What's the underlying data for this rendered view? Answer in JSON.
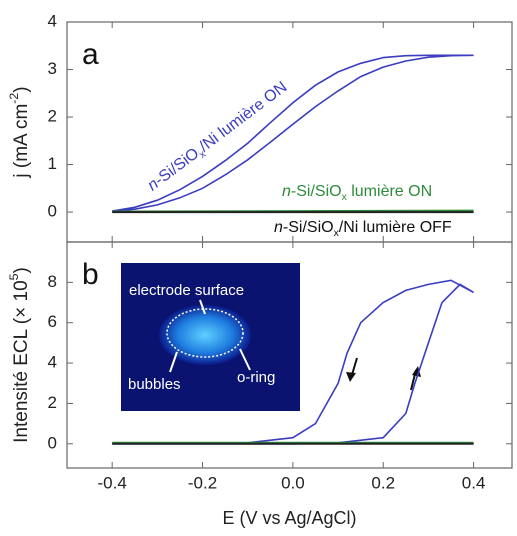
{
  "chart_data": [
    {
      "type": "line",
      "panel_label": "a",
      "ylabel": [
        "j (mA cm",
        "-2",
        ")"
      ],
      "ylabel_styles": [
        "normal",
        "sup",
        "normal"
      ],
      "xlim": [
        -0.5,
        0.485
      ],
      "xticks": [
        -0.4,
        -0.2,
        {
          "value": 0,
          "label": "0.0"
        },
        0.2,
        0.4
      ],
      "ylim": [
        -0.63,
        4
      ],
      "yticks": [
        0,
        1,
        2,
        3,
        4
      ],
      "series": [
        {
          "color": "#3a3dc0",
          "x": [
            -0.4,
            -0.35,
            -0.3,
            -0.25,
            -0.2,
            -0.15,
            -0.1,
            -0.05,
            0.0,
            0.05,
            0.1,
            0.15,
            0.2,
            0.25,
            0.3,
            0.35,
            0.4,
            0.35,
            0.3,
            0.25,
            0.2,
            0.15,
            0.1,
            0.05,
            0.0,
            -0.05,
            -0.1,
            -0.15,
            -0.2,
            -0.25,
            -0.3,
            -0.35,
            -0.4
          ],
          "values": [
            0.02,
            0.06,
            0.15,
            0.3,
            0.5,
            0.78,
            1.1,
            1.47,
            1.85,
            2.22,
            2.55,
            2.85,
            3.05,
            3.18,
            3.26,
            3.29,
            3.3,
            3.3,
            3.3,
            3.29,
            3.25,
            3.13,
            2.95,
            2.67,
            2.3,
            1.88,
            1.45,
            1.08,
            0.75,
            0.47,
            0.25,
            0.1,
            0.02
          ]
        },
        {
          "color": "#2e8b3a",
          "x": [
            -0.4,
            0.0,
            0.4
          ],
          "values": [
            0.01,
            0.02,
            0.03
          ]
        },
        {
          "color": "#222222",
          "x": [
            -0.4,
            0.0,
            0.4
          ],
          "values": [
            0.0,
            0.0,
            0.0
          ]
        }
      ],
      "annotations": [
        {
          "text": [
            "n",
            "-Si/SiO",
            "x",
            "/Ni lumière ON"
          ],
          "styles": [
            "italic",
            "normal",
            "sub",
            "normal"
          ],
          "color": "#3a3dc0"
        },
        {
          "text": [
            "n",
            "-Si/SiO",
            "x",
            " lumière ON"
          ],
          "styles": [
            "italic",
            "normal",
            "sub",
            "normal"
          ],
          "color": "#2e8b3a"
        },
        {
          "text": [
            "n",
            "-Si/SiO",
            "x",
            "/Ni lumière OFF"
          ],
          "styles": [
            "italic",
            "normal",
            "sub",
            "normal"
          ],
          "color": "#111111"
        }
      ]
    },
    {
      "type": "line",
      "panel_label": "b",
      "ylabel": [
        "Intensité ECL (× 10",
        "5",
        ")"
      ],
      "ylabel_styles": [
        "normal",
        "sup",
        "normal"
      ],
      "xlabel": "E (V vs Ag/AgCl)",
      "xlim": [
        -0.5,
        0.485
      ],
      "xticks": [
        -0.4,
        -0.2,
        {
          "value": 0,
          "label": "0.0"
        },
        0.2,
        0.4
      ],
      "ylim": [
        -1.2,
        10
      ],
      "yticks": [
        0,
        2,
        4,
        6,
        8
      ],
      "series": [
        {
          "color": "#3a3dc0",
          "x": [
            -0.4,
            -0.2,
            0.0,
            0.1,
            0.2,
            0.25,
            0.27,
            0.3,
            0.33,
            0.37,
            0.4,
            0.35,
            0.3,
            0.25,
            0.2,
            0.15,
            0.12,
            0.1,
            0.05,
            0.0,
            -0.1,
            -0.4
          ],
          "values": [
            0.0,
            0.0,
            0.0,
            0.05,
            0.3,
            1.5,
            3.0,
            5.0,
            7.0,
            7.9,
            7.5,
            8.1,
            7.9,
            7.6,
            7.0,
            6.0,
            4.5,
            3.0,
            1.0,
            0.3,
            0.05,
            0.0
          ]
        },
        {
          "color": "#2e8b3a",
          "x": [
            -0.4,
            0.0,
            0.4
          ],
          "values": [
            0.05,
            0.05,
            0.05
          ]
        },
        {
          "color": "#222222",
          "x": [
            -0.4,
            0.0,
            0.4
          ],
          "values": [
            0.0,
            0.0,
            0.0
          ]
        }
      ],
      "inset": {
        "labels": [
          "electrode surface",
          "bubbles",
          "o-ring"
        ]
      }
    }
  ]
}
